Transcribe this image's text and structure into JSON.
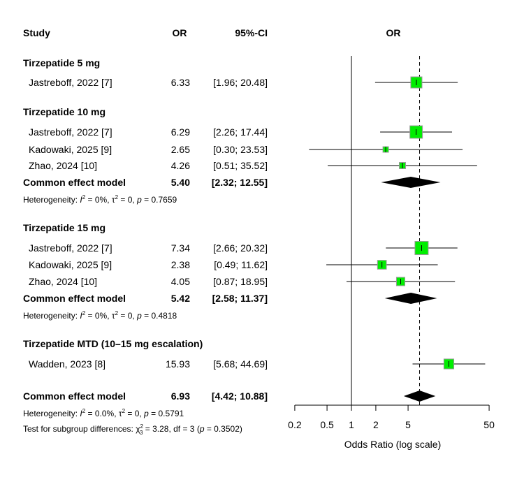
{
  "chart_data": {
    "type": "forest",
    "headers": {
      "study": "Study",
      "or": "OR",
      "ci": "95%-CI",
      "plot": "OR"
    },
    "xlabel": "Odds Ratio (log scale)",
    "x_ticks": [
      0.2,
      0.5,
      1,
      2,
      5,
      50
    ],
    "x_tick_labels": [
      "0.2",
      "0.5",
      "1",
      "2",
      "5",
      "50"
    ],
    "xlim": [
      0.2,
      50
    ],
    "scale": "log",
    "reference_line": 1,
    "pooled_line": 6.93,
    "colors": {
      "square": "#00ee00",
      "square_border": "#999999",
      "diamond": "#000000"
    },
    "groups": [
      {
        "title": "Tirzepatide 5 mg",
        "studies": [
          {
            "name": "Jastreboff, 2022 [7]",
            "or": 6.33,
            "lo": 1.96,
            "hi": 20.48,
            "or_text": "6.33",
            "ci_text": "[1.96; 20.48]",
            "weight": 64
          }
        ]
      },
      {
        "title": "Tirzepatide 10 mg",
        "studies": [
          {
            "name": "Jastreboff, 2022 [7]",
            "or": 6.29,
            "lo": 2.26,
            "hi": 17.44,
            "or_text": "6.29",
            "ci_text": "[2.26; 17.44]",
            "weight": 80
          },
          {
            "name": "Kadowaki, 2025 [9]",
            "or": 2.65,
            "lo": 0.3,
            "hi": 23.53,
            "or_text": "2.65",
            "ci_text": "[0.30; 23.53]",
            "weight": 16
          },
          {
            "name": "Zhao, 2024 [10]",
            "or": 4.26,
            "lo": 0.51,
            "hi": 35.52,
            "or_text": "4.26",
            "ci_text": "[0.51; 35.52]",
            "weight": 20
          }
        ],
        "pooled": {
          "label": "Common effect model",
          "or": 5.4,
          "lo": 2.32,
          "hi": 12.55,
          "or_text": "5.40",
          "ci_text": "[2.32; 12.55]"
        },
        "heterogeneity": {
          "prefix": "Heterogeneity: ",
          "i2": "I",
          "sup": "2",
          "rest": " = 0%, τ",
          "sup2": "2",
          "rest2": " = 0, ",
          "p": "p",
          "rest3": " = 0.7659"
        }
      },
      {
        "title": "Tirzepatide 15 mg",
        "studies": [
          {
            "name": "Jastreboff, 2022 [7]",
            "or": 7.34,
            "lo": 2.66,
            "hi": 20.32,
            "or_text": "7.34",
            "ci_text": "[2.66; 20.32]",
            "weight": 90
          },
          {
            "name": "Kadowaki, 2025 [9]",
            "or": 2.38,
            "lo": 0.49,
            "hi": 11.62,
            "or_text": "2.38",
            "ci_text": "[0.49; 11.62]",
            "weight": 40
          },
          {
            "name": "Zhao, 2024 [10]",
            "or": 4.05,
            "lo": 0.87,
            "hi": 18.95,
            "or_text": "4.05",
            "ci_text": "[0.87; 18.95]",
            "weight": 36
          }
        ],
        "pooled": {
          "label": "Common effect model",
          "or": 5.42,
          "lo": 2.58,
          "hi": 11.37,
          "or_text": "5.42",
          "ci_text": "[2.58; 11.37]"
        },
        "heterogeneity": {
          "prefix": "Heterogeneity: ",
          "i2": "I",
          "sup": "2",
          "rest": " = 0%, τ",
          "sup2": "2",
          "rest2": " = 0, ",
          "p": "p",
          "rest3": " = 0.4818"
        }
      },
      {
        "title": "Tirzepatide MTD (10–15 mg escalation)",
        "studies": [
          {
            "name": "Wadden, 2023 [8]",
            "or": 15.93,
            "lo": 5.68,
            "hi": 44.69,
            "or_text": "15.93",
            "ci_text": "[5.68; 44.69]",
            "weight": 50
          }
        ]
      }
    ],
    "overall": {
      "label": "Common effect model",
      "or": 6.93,
      "lo": 4.42,
      "hi": 10.88,
      "or_text": "6.93",
      "ci_text": "[4.42; 10.88]"
    },
    "overall_heterogeneity": {
      "prefix": "Heterogeneity: ",
      "i2": "I",
      "sup": "2",
      "rest": " = 0.0%, τ",
      "sup2": "2",
      "rest2": " = 0, ",
      "p": "p",
      "rest3": " = 0.5791"
    },
    "subgroup_test": {
      "prefix": "Test for subgroup differences: χ",
      "sup": "2",
      "sub": "3",
      "rest": " = 3.28, df = 3 (",
      "p": "p",
      "rest2": " = 0.3502)"
    }
  }
}
